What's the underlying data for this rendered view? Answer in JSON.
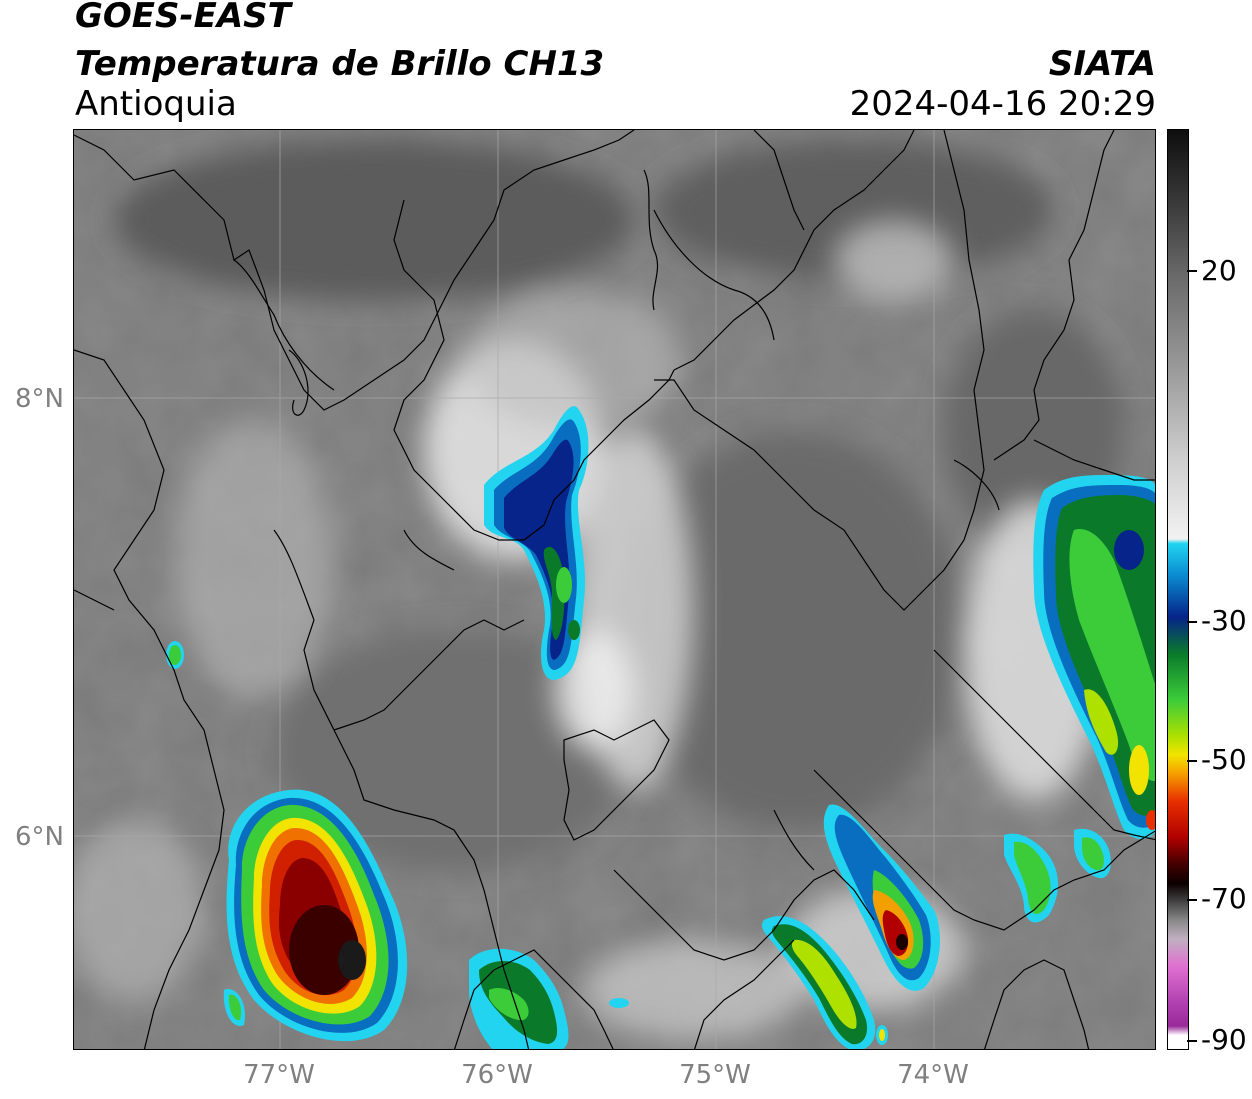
{
  "header": {
    "title": "GOES-EAST",
    "subtitle": "Temperatura de Brillo CH13",
    "region": "Antioquia",
    "organization": "SIATA",
    "datetime": "2024-04-16 20:29"
  },
  "axes": {
    "lat_ticks": [
      "8°N",
      "6°N"
    ],
    "lon_ticks": [
      "77°W",
      "76°W",
      "75°W",
      "74°W"
    ]
  },
  "colorbar": {
    "tick_labels": [
      "20",
      "-30",
      "-50",
      "-70",
      "-90"
    ]
  },
  "colors": {
    "cloud_warm": "#6e6e6e",
    "cloud_cold_cyan": "#22d4f0",
    "deep_blue": "#06248a",
    "green": "#3ccc3a",
    "yellow": "#f2e400",
    "red": "#e83000",
    "dark_red": "#400000"
  }
}
